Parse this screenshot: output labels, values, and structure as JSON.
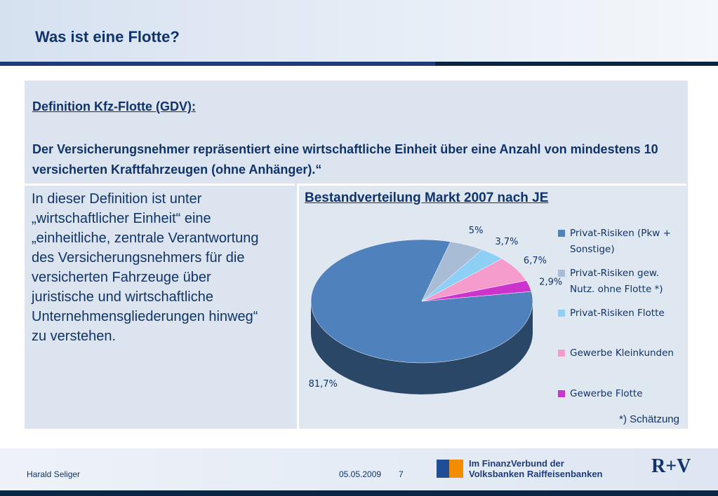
{
  "header": {
    "title": "Was ist eine Flotte?"
  },
  "definition": {
    "heading": "Definition Kfz-Flotte (GDV):",
    "text": "Der Versicherungsnehmer repräsentiert eine wirtschaftliche Einheit über eine Anzahl von mindestens 10 versicherten Kraftfahrzeugen (ohne Anhänger).“"
  },
  "explanation": "In dieser Definition ist unter „wirtschaftlicher Einheit“ eine „einheitliche, zentrale Verantwortung des Versicherungsnehmers für die versicherten Fahrzeuge über juristische und wirtschaftliche Unternehmensgliederungen hinweg“ zu verstehen.",
  "chart_data": {
    "type": "pie",
    "title": "Bestandverteilung Markt 2007 nach JE",
    "categories": [
      "Privat-Risiken (Pkw + Sonstige)",
      "Privat-Risiken gew. Nutz. ohne Flotte *)",
      "Privat-Risiken Flotte",
      "Gewerbe Kleinkunden",
      "Gewerbe Flotte"
    ],
    "values": [
      81.7,
      5,
      3.7,
      6.7,
      2.9
    ],
    "value_labels": [
      "81,7%",
      "5%",
      "3,7%",
      "6,7%",
      "2,9%"
    ],
    "colors": [
      "#4f81bd",
      "#a9bcd6",
      "#8ecff5",
      "#f59ccc",
      "#cc33cc"
    ],
    "note": "*) Schätzung"
  },
  "footer": {
    "author": "Harald Seliger",
    "date": "05.05.2009",
    "page": "7",
    "logo_line1": "Im FinanzVerbund der",
    "logo_line2": "Volksbanken Raiffeisenbanken",
    "brand": "R+V"
  }
}
